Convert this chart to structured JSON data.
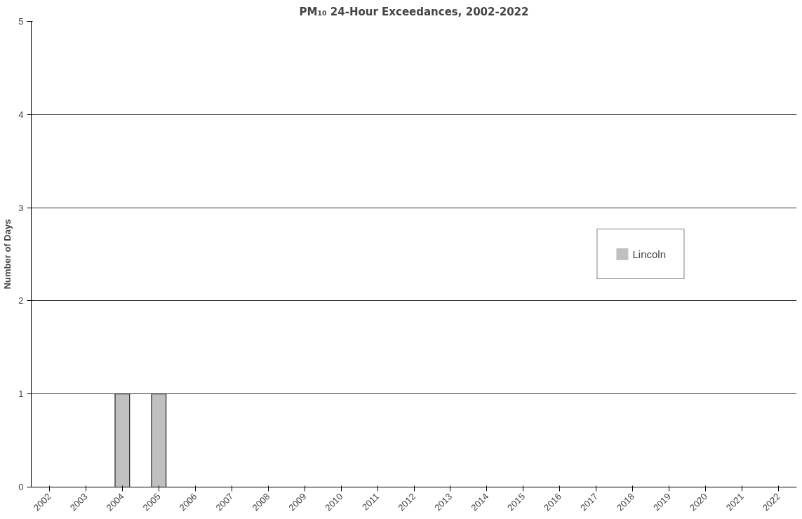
{
  "chart_data": {
    "type": "bar",
    "title": "PM₁₀ 24-Hour Exceedances, 2002-2022",
    "ylabel": "Number of Days",
    "categories": [
      "2002",
      "2003",
      "2004",
      "2005",
      "2006",
      "2007",
      "2008",
      "2009",
      "2010",
      "2011",
      "2012",
      "2013",
      "2014",
      "2015",
      "2016",
      "2017",
      "2018",
      "2019",
      "2020",
      "2021",
      "2022"
    ],
    "series": [
      {
        "name": "Lincoln",
        "color": "#c0c0c0",
        "values": [
          0,
          0,
          1,
          1,
          0,
          0,
          0,
          0,
          0,
          0,
          0,
          0,
          0,
          0,
          0,
          0,
          0,
          0,
          0,
          0,
          0
        ]
      }
    ],
    "ylim": [
      0,
      5
    ],
    "yticks": [
      0,
      1,
      2,
      3,
      4,
      5
    ],
    "grid": "y",
    "legend": "right"
  }
}
